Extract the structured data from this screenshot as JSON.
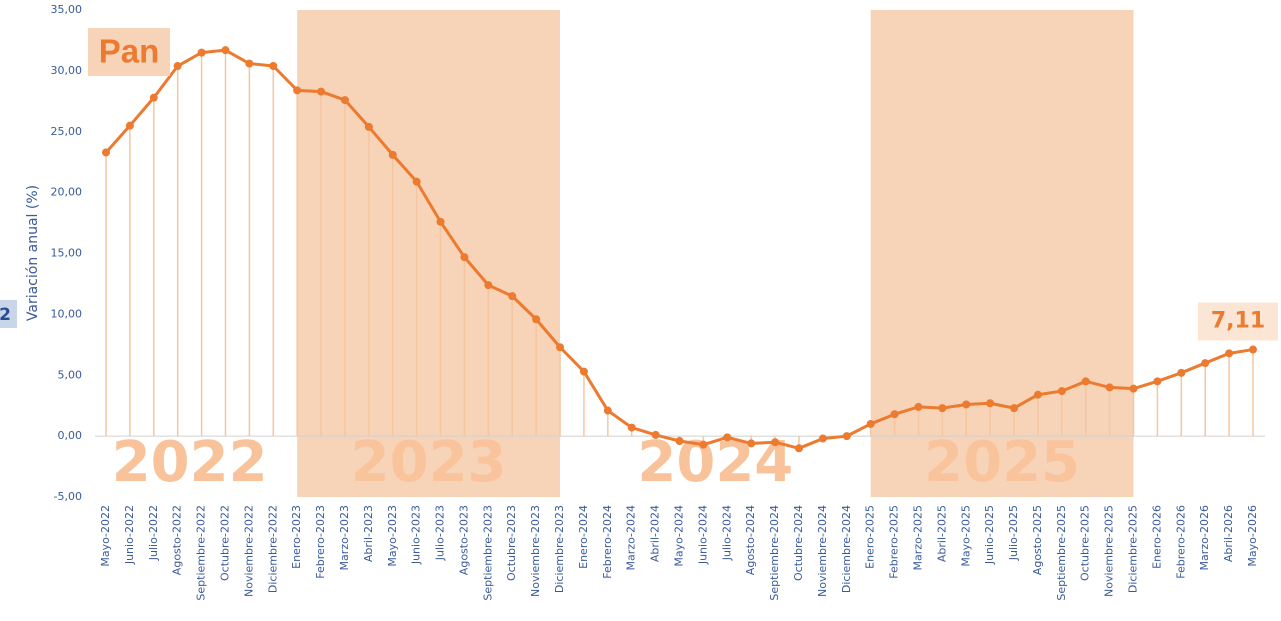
{
  "chart_data": {
    "type": "line",
    "title": "Pan",
    "side_tab": "2",
    "y_label": "Variación anual (%)",
    "color": "#ec7a2f",
    "drop_color": "#f6c6a2",
    "band_color": "#f7d3b8",
    "categories": [
      "Mayo-2022",
      "Junio-2022",
      "Julio-2022",
      "Agosto-2022",
      "Septiembre-2022",
      "Octubre-2022",
      "Noviembre-2022",
      "Diciembre-2022",
      "Enero-2023",
      "Febrero-2023",
      "Marzo-2023",
      "Abril-2023",
      "Mayo-2023",
      "Junio-2023",
      "Julio-2023",
      "Agosto-2023",
      "Septiembre-2023",
      "Octubre-2023",
      "Noviembre-2023",
      "Diciembre-2023",
      "Enero-2024",
      "Febrero-2024",
      "Marzo-2024",
      "Abril-2024",
      "Mayo-2024",
      "Junio-2024",
      "Julio-2024",
      "Agosto-2024",
      "Septiembre-2024",
      "Octubre-2024",
      "Noviembre-2024",
      "Diciembre-2024",
      "Enero-2025",
      "Febrero-2025",
      "Marzo-2025",
      "Abril-2025",
      "Mayo-2025",
      "Junio-2025",
      "Julio-2025",
      "Agosto-2025",
      "Septiembre-2025",
      "Octubre-2025",
      "Noviembre-2025",
      "Diciembre-2025",
      "Enero-2026",
      "Febrero-2026",
      "Marzo-2026",
      "Abril-2026",
      "Mayo-2026"
    ],
    "values": [
      23.3,
      25.5,
      27.8,
      30.4,
      31.5,
      31.7,
      30.6,
      30.4,
      28.4,
      28.3,
      27.6,
      25.4,
      23.1,
      20.9,
      17.6,
      14.7,
      12.4,
      11.5,
      9.6,
      7.3,
      5.3,
      2.1,
      0.7,
      0.1,
      -0.4,
      -0.7,
      -0.1,
      -0.6,
      -0.5,
      -1.0,
      -0.2,
      0.0,
      1.0,
      1.8,
      2.4,
      2.3,
      2.6,
      2.7,
      2.3,
      3.4,
      3.7,
      4.5,
      4.0,
      3.9,
      4.5,
      5.2,
      6.0,
      6.8,
      7.11
    ],
    "value_labels": {
      "48": "7,11"
    },
    "periods": [
      {
        "label": "2022",
        "from": "Mayo-2022",
        "to": "Diciembre-2022",
        "shaded": false
      },
      {
        "label": "2023",
        "from": "Enero-2023",
        "to": "Diciembre-2023",
        "shaded": true
      },
      {
        "label": "2024",
        "from": "Enero-2024",
        "to": "Diciembre-2024",
        "shaded": false
      },
      {
        "label": "2025",
        "from": "Enero-2025",
        "to": "Diciembre-2025",
        "shaded": true
      }
    ],
    "ylim": [
      -5,
      35
    ],
    "yticks": [
      {
        "value": -5,
        "label": "-5,00"
      },
      {
        "value": 0,
        "label": "0,00"
      },
      {
        "value": 5,
        "label": "5,00"
      },
      {
        "value": 10,
        "label": "10,00"
      },
      {
        "value": 15,
        "label": "15,00"
      },
      {
        "value": 20,
        "label": "20,00"
      },
      {
        "value": 25,
        "label": "25,00"
      },
      {
        "value": 30,
        "label": "30,00"
      },
      {
        "value": 35,
        "label": "35,00"
      }
    ]
  }
}
